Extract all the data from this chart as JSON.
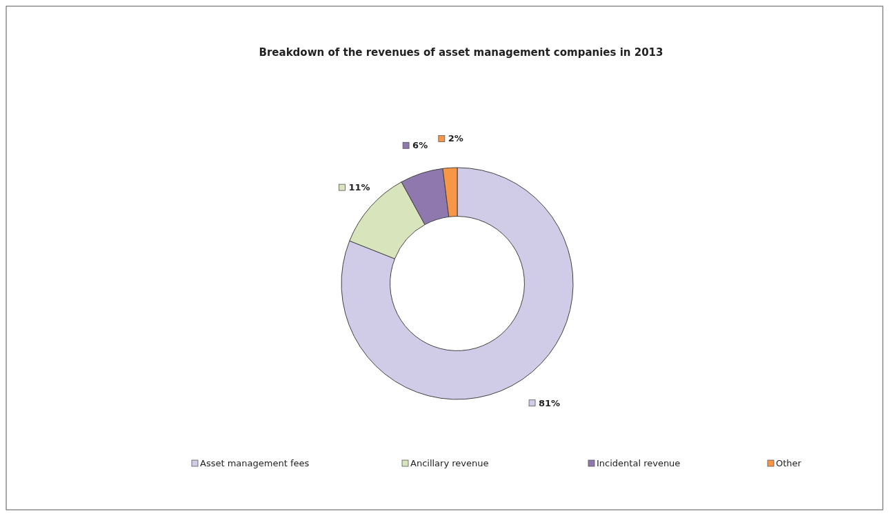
{
  "chart_data": {
    "type": "donut",
    "title": "Breakdown of the revenues of asset management companies in 2013",
    "categories": [
      "Asset management fees",
      "Ancillary revenue",
      "Incidental revenue",
      "Other"
    ],
    "values": [
      81,
      11,
      6,
      2
    ],
    "value_labels": [
      "81%",
      "11%",
      "6%",
      "2%"
    ],
    "colors": [
      "#d0cce8",
      "#d8e4bc",
      "#8e78ad",
      "#f79646"
    ],
    "legend": "bottom"
  }
}
